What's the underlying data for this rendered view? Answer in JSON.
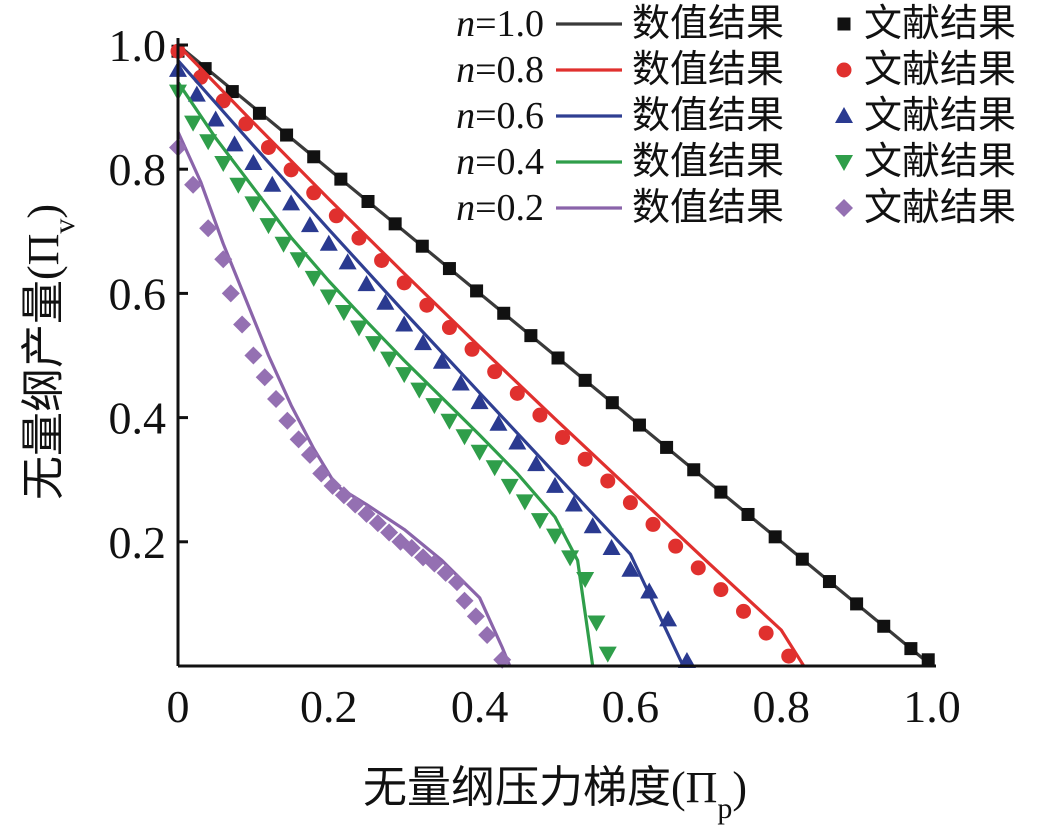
{
  "chart_data": {
    "type": "line",
    "xlabel": "无量纲压力梯度(Π",
    "xlabel_sub": "p",
    "xlabel_close": ")",
    "ylabel": "无量纲产量(Π",
    "ylabel_sub": "v",
    "ylabel_close": ")",
    "xlim": [
      0,
      1.0
    ],
    "ylim": [
      0,
      1.0
    ],
    "xticks": [
      "0",
      "0.2",
      "0.4",
      "0.6",
      "0.8",
      "1.0"
    ],
    "xtick_values": [
      0,
      0.2,
      0.4,
      0.6,
      0.8,
      1.0
    ],
    "yticks": [
      "0.2",
      "0.4",
      "0.6",
      "0.8",
      "1.0"
    ],
    "ytick_values": [
      0.2,
      0.4,
      0.6,
      0.8,
      1.0
    ],
    "legend_position": "top-right",
    "line_label": "数值结果",
    "marker_label": "文献结果",
    "series": [
      {
        "name": "n=1.0",
        "n_prefix": "n",
        "n_value": "=1.0",
        "color": "#3a3a3a",
        "marker_color": "#111111",
        "marker": "square",
        "line": [
          [
            0,
            1.0
          ],
          [
            1.0,
            0.0
          ]
        ],
        "points": [
          [
            0,
            0.99
          ],
          [
            0.036,
            0.962
          ],
          [
            0.072,
            0.925
          ],
          [
            0.108,
            0.89
          ],
          [
            0.144,
            0.855
          ],
          [
            0.18,
            0.82
          ],
          [
            0.216,
            0.784
          ],
          [
            0.252,
            0.748
          ],
          [
            0.288,
            0.712
          ],
          [
            0.324,
            0.676
          ],
          [
            0.36,
            0.64
          ],
          [
            0.396,
            0.604
          ],
          [
            0.432,
            0.568
          ],
          [
            0.468,
            0.532
          ],
          [
            0.504,
            0.496
          ],
          [
            0.54,
            0.46
          ],
          [
            0.576,
            0.424
          ],
          [
            0.612,
            0.388
          ],
          [
            0.648,
            0.352
          ],
          [
            0.684,
            0.316
          ],
          [
            0.72,
            0.28
          ],
          [
            0.756,
            0.244
          ],
          [
            0.792,
            0.208
          ],
          [
            0.828,
            0.172
          ],
          [
            0.864,
            0.136
          ],
          [
            0.9,
            0.1
          ],
          [
            0.936,
            0.064
          ],
          [
            0.972,
            0.028
          ],
          [
            0.995,
            0.01
          ]
        ]
      },
      {
        "name": "n=0.8",
        "n_prefix": "n",
        "n_value": "=0.8",
        "color": "#e0302e",
        "marker_color": "#e0302e",
        "marker": "circle",
        "line": [
          [
            0,
            1.0
          ],
          [
            0.1,
            0.875
          ],
          [
            0.2,
            0.752
          ],
          [
            0.3,
            0.632
          ],
          [
            0.4,
            0.514
          ],
          [
            0.5,
            0.398
          ],
          [
            0.6,
            0.284
          ],
          [
            0.7,
            0.17
          ],
          [
            0.8,
            0.058
          ],
          [
            0.83,
            0.0
          ]
        ],
        "points": [
          [
            0,
            0.99
          ],
          [
            0.03,
            0.948
          ],
          [
            0.06,
            0.91
          ],
          [
            0.09,
            0.873
          ],
          [
            0.12,
            0.835
          ],
          [
            0.15,
            0.799
          ],
          [
            0.18,
            0.762
          ],
          [
            0.21,
            0.725
          ],
          [
            0.24,
            0.689
          ],
          [
            0.27,
            0.653
          ],
          [
            0.3,
            0.617
          ],
          [
            0.33,
            0.581
          ],
          [
            0.36,
            0.545
          ],
          [
            0.39,
            0.51
          ],
          [
            0.42,
            0.474
          ],
          [
            0.45,
            0.439
          ],
          [
            0.48,
            0.404
          ],
          [
            0.51,
            0.368
          ],
          [
            0.54,
            0.333
          ],
          [
            0.57,
            0.298
          ],
          [
            0.6,
            0.263
          ],
          [
            0.63,
            0.228
          ],
          [
            0.66,
            0.193
          ],
          [
            0.69,
            0.158
          ],
          [
            0.72,
            0.123
          ],
          [
            0.75,
            0.088
          ],
          [
            0.78,
            0.053
          ],
          [
            0.81,
            0.016
          ]
        ]
      },
      {
        "name": "n=0.6",
        "n_prefix": "n",
        "n_value": "=0.6",
        "color": "#2f3f92",
        "marker_color": "#2a3a90",
        "marker": "triangle-up",
        "line": [
          [
            0,
            0.975
          ],
          [
            0.1,
            0.838
          ],
          [
            0.2,
            0.703
          ],
          [
            0.3,
            0.57
          ],
          [
            0.4,
            0.44
          ],
          [
            0.5,
            0.31
          ],
          [
            0.6,
            0.18
          ],
          [
            0.67,
            0.0
          ]
        ],
        "points": [
          [
            0,
            0.96
          ],
          [
            0.025,
            0.92
          ],
          [
            0.05,
            0.88
          ],
          [
            0.075,
            0.84
          ],
          [
            0.1,
            0.81
          ],
          [
            0.125,
            0.775
          ],
          [
            0.15,
            0.745
          ],
          [
            0.175,
            0.71
          ],
          [
            0.2,
            0.68
          ],
          [
            0.225,
            0.65
          ],
          [
            0.25,
            0.615
          ],
          [
            0.275,
            0.585
          ],
          [
            0.3,
            0.55
          ],
          [
            0.325,
            0.52
          ],
          [
            0.35,
            0.49
          ],
          [
            0.375,
            0.455
          ],
          [
            0.4,
            0.425
          ],
          [
            0.425,
            0.39
          ],
          [
            0.45,
            0.36
          ],
          [
            0.475,
            0.325
          ],
          [
            0.5,
            0.29
          ],
          [
            0.525,
            0.26
          ],
          [
            0.55,
            0.225
          ],
          [
            0.575,
            0.19
          ],
          [
            0.6,
            0.155
          ],
          [
            0.625,
            0.12
          ],
          [
            0.65,
            0.075
          ],
          [
            0.675,
            0.008
          ]
        ]
      },
      {
        "name": "n=0.4",
        "n_prefix": "n",
        "n_value": "=0.4",
        "color": "#2f9e4a",
        "marker_color": "#2f9e4a",
        "marker": "triangle-down",
        "line": [
          [
            0,
            0.94
          ],
          [
            0.05,
            0.85
          ],
          [
            0.1,
            0.77
          ],
          [
            0.15,
            0.69
          ],
          [
            0.2,
            0.62
          ],
          [
            0.25,
            0.555
          ],
          [
            0.3,
            0.492
          ],
          [
            0.35,
            0.432
          ],
          [
            0.4,
            0.372
          ],
          [
            0.45,
            0.31
          ],
          [
            0.5,
            0.24
          ],
          [
            0.53,
            0.17
          ],
          [
            0.55,
            0.0
          ]
        ],
        "points": [
          [
            0,
            0.925
          ],
          [
            0.02,
            0.875
          ],
          [
            0.04,
            0.845
          ],
          [
            0.06,
            0.81
          ],
          [
            0.08,
            0.775
          ],
          [
            0.1,
            0.745
          ],
          [
            0.12,
            0.71
          ],
          [
            0.14,
            0.68
          ],
          [
            0.16,
            0.655
          ],
          [
            0.18,
            0.625
          ],
          [
            0.2,
            0.595
          ],
          [
            0.22,
            0.57
          ],
          [
            0.24,
            0.545
          ],
          [
            0.26,
            0.52
          ],
          [
            0.28,
            0.495
          ],
          [
            0.3,
            0.47
          ],
          [
            0.32,
            0.445
          ],
          [
            0.34,
            0.42
          ],
          [
            0.36,
            0.395
          ],
          [
            0.38,
            0.37
          ],
          [
            0.4,
            0.345
          ],
          [
            0.42,
            0.32
          ],
          [
            0.44,
            0.29
          ],
          [
            0.46,
            0.265
          ],
          [
            0.48,
            0.235
          ],
          [
            0.5,
            0.21
          ],
          [
            0.52,
            0.175
          ],
          [
            0.54,
            0.14
          ],
          [
            0.555,
            0.07
          ],
          [
            0.57,
            0.02
          ]
        ]
      },
      {
        "name": "n=0.2",
        "n_prefix": "n",
        "n_value": "=0.2",
        "color": "#8a64aa",
        "marker_color": "#9470b2",
        "marker": "diamond",
        "line": [
          [
            0,
            0.86
          ],
          [
            0.03,
            0.78
          ],
          [
            0.06,
            0.68
          ],
          [
            0.09,
            0.59
          ],
          [
            0.12,
            0.5
          ],
          [
            0.15,
            0.42
          ],
          [
            0.18,
            0.35
          ],
          [
            0.21,
            0.29
          ],
          [
            0.25,
            0.26
          ],
          [
            0.3,
            0.22
          ],
          [
            0.35,
            0.17
          ],
          [
            0.4,
            0.11
          ],
          [
            0.43,
            0.03
          ],
          [
            0.44,
            0.0
          ]
        ],
        "points": [
          [
            0,
            0.835
          ],
          [
            0.02,
            0.775
          ],
          [
            0.04,
            0.705
          ],
          [
            0.06,
            0.655
          ],
          [
            0.07,
            0.6
          ],
          [
            0.085,
            0.55
          ],
          [
            0.1,
            0.5
          ],
          [
            0.115,
            0.465
          ],
          [
            0.13,
            0.43
          ],
          [
            0.145,
            0.395
          ],
          [
            0.16,
            0.365
          ],
          [
            0.175,
            0.34
          ],
          [
            0.19,
            0.31
          ],
          [
            0.205,
            0.29
          ],
          [
            0.22,
            0.275
          ],
          [
            0.235,
            0.26
          ],
          [
            0.25,
            0.245
          ],
          [
            0.265,
            0.23
          ],
          [
            0.28,
            0.215
          ],
          [
            0.295,
            0.2
          ],
          [
            0.31,
            0.19
          ],
          [
            0.325,
            0.175
          ],
          [
            0.34,
            0.165
          ],
          [
            0.355,
            0.15
          ],
          [
            0.37,
            0.135
          ],
          [
            0.38,
            0.105
          ],
          [
            0.395,
            0.08
          ],
          [
            0.41,
            0.05
          ],
          [
            0.43,
            0.01
          ]
        ]
      }
    ]
  }
}
